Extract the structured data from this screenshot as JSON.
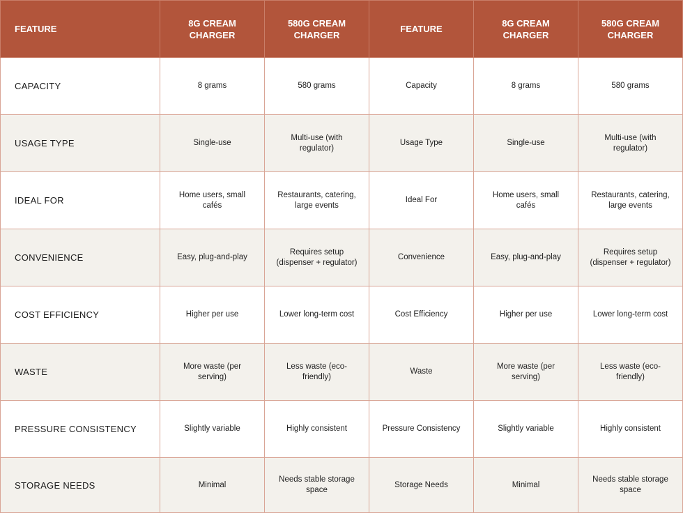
{
  "table": {
    "headers": [
      "Feature",
      "8G Cream Charger",
      "580G Cream Charger",
      "Feature",
      "8G Cream Charger",
      "580G Cream Charger"
    ],
    "rows": [
      {
        "feature": "Capacity",
        "small": "8 grams",
        "large": "580 grams",
        "feature2": "Capacity",
        "small2": "8 grams",
        "large2": "580 grams"
      },
      {
        "feature": "Usage Type",
        "small": "Single-use",
        "large": "Multi-use (with regulator)",
        "feature2": "Usage Type",
        "small2": "Single-use",
        "large2": "Multi-use (with regulator)"
      },
      {
        "feature": "Ideal For",
        "small": "Home users, small cafés",
        "large": "Restaurants, catering, large events",
        "feature2": "Ideal For",
        "small2": "Home users, small cafés",
        "large2": "Restaurants, catering, large events"
      },
      {
        "feature": "Convenience",
        "small": "Easy, plug-and-play",
        "large": "Requires setup (dispenser + regulator)",
        "feature2": "Convenience",
        "small2": "Easy, plug-and-play",
        "large2": "Requires setup (dispenser + regulator)"
      },
      {
        "feature": "Cost Efficiency",
        "small": "Higher per use",
        "large": "Lower long-term cost",
        "feature2": "Cost Efficiency",
        "small2": "Higher per use",
        "large2": "Lower long-term cost"
      },
      {
        "feature": "Waste",
        "small": "More waste (per serving)",
        "large": "Less waste (eco-friendly)",
        "feature2": "Waste",
        "small2": "More waste (per serving)",
        "large2": "Less waste (eco-friendly)"
      },
      {
        "feature": "Pressure Consistency",
        "small": "Slightly variable",
        "large": "Highly consistent",
        "feature2": "Pressure Consistency",
        "small2": "Slightly variable",
        "large2": "Highly consistent"
      },
      {
        "feature": "Storage Needs",
        "small": "Minimal",
        "large": "Needs stable storage space",
        "feature2": "Storage Needs",
        "small2": "Minimal",
        "large2": "Needs stable storage space"
      }
    ]
  },
  "colors": {
    "header_bg": "#b2553b",
    "header_text": "#ffffff",
    "row_alt_bg": "#f3f1ec",
    "border": "#d9a596"
  }
}
